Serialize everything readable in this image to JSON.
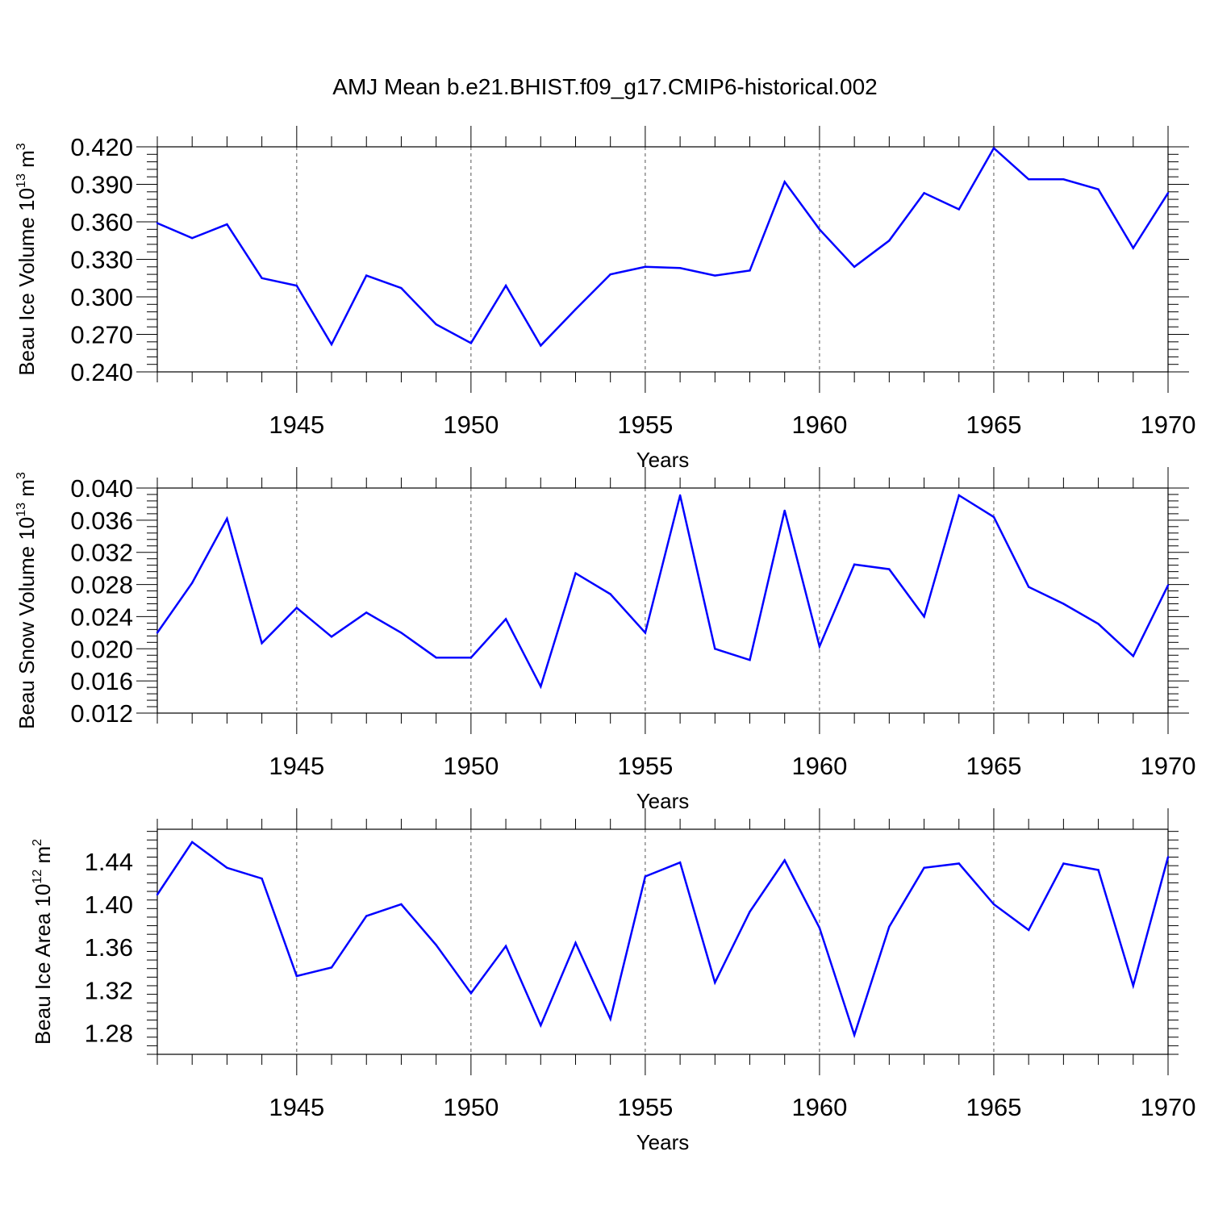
{
  "title": "AMJ Mean b.e21.BHIST.f09_g17.CMIP6-historical.002",
  "colors": {
    "line": "#0000ff",
    "axis": "#000000",
    "grid": "#555555"
  },
  "chart_data": [
    {
      "type": "line",
      "ylabel": "Beau Ice Volume 10",
      "ylabel_exp": "13",
      "ylabel_unit": "m",
      "ylabel_unit_exp": "3",
      "xlabel": "Years",
      "xlim": [
        1941,
        1970
      ],
      "ylim": [
        0.24,
        0.42
      ],
      "yticks": [
        "0.240",
        "0.270",
        "0.300",
        "0.330",
        "0.360",
        "0.390",
        "0.420"
      ],
      "xticks": [
        "1945",
        "1950",
        "1955",
        "1960",
        "1965",
        "1970"
      ],
      "x": [
        1941,
        1942,
        1943,
        1944,
        1945,
        1946,
        1947,
        1948,
        1949,
        1950,
        1951,
        1952,
        1953,
        1954,
        1955,
        1956,
        1957,
        1958,
        1959,
        1960,
        1961,
        1962,
        1963,
        1964,
        1965,
        1966,
        1967,
        1968,
        1969,
        1970
      ],
      "values": [
        0.359,
        0.347,
        0.358,
        0.315,
        0.309,
        0.262,
        0.317,
        0.307,
        0.278,
        0.263,
        0.309,
        0.261,
        0.29,
        0.318,
        0.324,
        0.323,
        0.317,
        0.321,
        0.392,
        0.354,
        0.324,
        0.345,
        0.383,
        0.37,
        0.419,
        0.394,
        0.394,
        0.386,
        0.339,
        0.383
      ]
    },
    {
      "type": "line",
      "ylabel": "Beau Snow Volume 10",
      "ylabel_exp": "13",
      "ylabel_unit": "m",
      "ylabel_unit_exp": "3",
      "xlabel": "Years",
      "xlim": [
        1941,
        1970
      ],
      "ylim": [
        0.012,
        0.04
      ],
      "yticks": [
        "0.012",
        "0.016",
        "0.020",
        "0.024",
        "0.028",
        "0.032",
        "0.036",
        "0.040"
      ],
      "xticks": [
        "1945",
        "1950",
        "1955",
        "1960",
        "1965",
        "1970"
      ],
      "x": [
        1941,
        1942,
        1943,
        1944,
        1945,
        1946,
        1947,
        1948,
        1949,
        1950,
        1951,
        1952,
        1953,
        1954,
        1955,
        1956,
        1957,
        1958,
        1959,
        1960,
        1961,
        1962,
        1963,
        1964,
        1965,
        1966,
        1967,
        1968,
        1969,
        1970
      ],
      "values": [
        0.022,
        0.0282,
        0.0362,
        0.0207,
        0.0251,
        0.0215,
        0.0245,
        0.022,
        0.0189,
        0.0189,
        0.0237,
        0.0153,
        0.0294,
        0.0268,
        0.022,
        0.0391,
        0.02,
        0.0186,
        0.0372,
        0.0203,
        0.0305,
        0.0299,
        0.024,
        0.0391,
        0.0364,
        0.0277,
        0.0256,
        0.0231,
        0.0191,
        0.0279
      ]
    },
    {
      "type": "line",
      "ylabel": "Beau Ice Area 10",
      "ylabel_exp": "12",
      "ylabel_unit": "m",
      "ylabel_unit_exp": "2",
      "xlabel": "Years",
      "xlim": [
        1941,
        1970
      ],
      "ylim": [
        1.26,
        1.47
      ],
      "yticks": [
        "1.28",
        "1.32",
        "1.36",
        "1.40",
        "1.44"
      ],
      "xticks": [
        "1945",
        "1950",
        "1955",
        "1960",
        "1965",
        "1970"
      ],
      "x": [
        1941,
        1942,
        1943,
        1944,
        1945,
        1946,
        1947,
        1948,
        1949,
        1950,
        1951,
        1952,
        1953,
        1954,
        1955,
        1956,
        1957,
        1958,
        1959,
        1960,
        1961,
        1962,
        1963,
        1964,
        1965,
        1966,
        1967,
        1968,
        1969,
        1970
      ],
      "values": [
        1.409,
        1.458,
        1.434,
        1.424,
        1.333,
        1.341,
        1.389,
        1.4,
        1.362,
        1.317,
        1.361,
        1.287,
        1.364,
        1.293,
        1.426,
        1.439,
        1.327,
        1.393,
        1.441,
        1.378,
        1.278,
        1.379,
        1.434,
        1.438,
        1.4,
        1.376,
        1.438,
        1.432,
        1.324,
        1.444
      ]
    }
  ]
}
